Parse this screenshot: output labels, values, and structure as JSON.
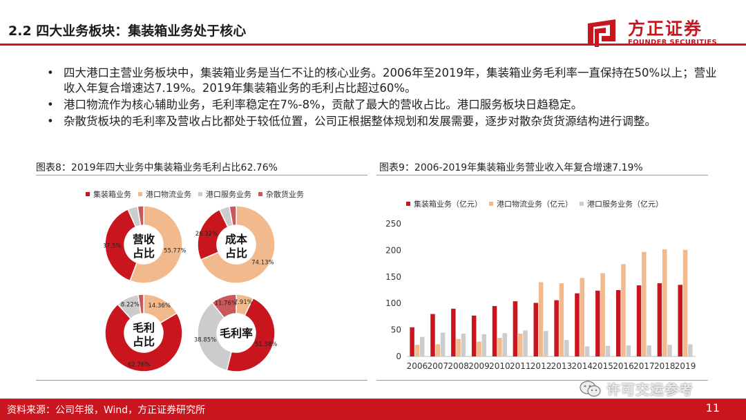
{
  "header": {
    "title": "2.2 四大业务板块：集装箱业务处于核心",
    "logo_cn": "方正证券",
    "logo_en": "FOUNDER SECURITIES"
  },
  "bullets": [
    "四大港口主营业务板块中，集装箱业务是当仁不让的核心业务。2006年至2019年，集装箱业务毛利率一直保持在50%以上；营业收入年复合增速达7.19%。2019年集装箱业务的毛利占比超过60%。",
    "港口物流作为核心辅助业务，毛利率稳定在7%-8%，贡献了最大的营收占比。港口服务板块日趋稳定。",
    "杂散货板块的毛利率及营收占比都处于较低位置，公司正根据整体规划和发展需要，逐步对散杂货货源结构进行调整。"
  ],
  "colors": {
    "red": "#c9151e",
    "orange": "#f2b98c",
    "gray": "#cccccc",
    "pink": "#c9585a",
    "footer_bg": "#c9151e"
  },
  "figure8": {
    "title": "图表8：2019年四大业务中集装箱业务毛利占比62.76%",
    "legend": [
      "集装箱业务",
      "港口物流业务",
      "港口服务业务",
      "杂散货业务"
    ]
  },
  "figure9": {
    "title": "图表9：2006-2019年集装箱业务营业收入年复合增速7.19%",
    "legend": [
      "集装箱业务（亿元）",
      "港口物流业务（亿元）",
      "港口服务业务（亿元）"
    ]
  },
  "chart_data": [
    {
      "type": "pie",
      "center_label": "营收\n占比",
      "series": [
        {
          "name": "集装箱业务",
          "value": 37.5,
          "label": "37.5%"
        },
        {
          "name": "港口物流业务",
          "value": 55.77,
          "label": "55.77%"
        },
        {
          "name": "港口服务业务",
          "value": 4.2,
          "label": ""
        },
        {
          "name": "杂散货业务",
          "value": 2.53,
          "label": ""
        }
      ]
    },
    {
      "type": "pie",
      "center_label": "成本\n占比",
      "series": [
        {
          "name": "集装箱业务",
          "value": 26.32,
          "label": "26.32%"
        },
        {
          "name": "港口物流业务",
          "value": 74.13,
          "label": "74.13%"
        },
        {
          "name": "港口服务业务",
          "value": 4.6,
          "label": ""
        },
        {
          "name": "杂散货业务",
          "value": 3.1,
          "label": ""
        }
      ]
    },
    {
      "type": "pie",
      "center_label": "毛利\n占比",
      "series": [
        {
          "name": "集装箱业务",
          "value": 62.76,
          "label": "62.76%"
        },
        {
          "name": "港口物流业务",
          "value": 14.36,
          "label": "14.36%"
        },
        {
          "name": "港口服务业务",
          "value": 8.22,
          "label": "8.22%"
        },
        {
          "name": "杂散货业务",
          "value": 2.0,
          "label": ""
        }
      ]
    },
    {
      "type": "pie",
      "center_label": "毛利率",
      "series": [
        {
          "name": "集装箱业务",
          "value": 51.38,
          "label": "51.38%"
        },
        {
          "name": "港口物流业务",
          "value": 7.91,
          "label": "7.91%"
        },
        {
          "name": "港口服务业务",
          "value": 38.85,
          "label": "38.85%"
        },
        {
          "name": "杂散货业务",
          "value": 11.76,
          "label": "11.76%"
        }
      ]
    },
    {
      "type": "bar",
      "categories": [
        "2006",
        "2007",
        "2008",
        "2009",
        "2010",
        "2011",
        "2012",
        "2013",
        "2014",
        "2015",
        "2016",
        "2017",
        "2018",
        "2019"
      ],
      "series": [
        {
          "name": "集装箱业务（亿元）",
          "values": [
            55,
            80,
            90,
            77,
            95,
            104,
            101,
            106,
            119,
            124,
            125,
            134,
            138,
            135
          ]
        },
        {
          "name": "港口物流业务（亿元）",
          "values": [
            22,
            23,
            33,
            28,
            35,
            43,
            140,
            138,
            148,
            157,
            174,
            197,
            202,
            201
          ]
        },
        {
          "name": "港口服务业务（亿元）",
          "values": [
            37,
            45,
            43,
            42,
            44,
            49,
            48,
            31,
            19,
            20,
            21,
            21,
            22,
            23
          ]
        }
      ],
      "ylim": [
        0,
        250
      ],
      "yticks": [
        0,
        50,
        100,
        150,
        200,
        250
      ]
    }
  ],
  "footer": {
    "source": "资料来源：公司年报，Wind，方正证券研究所",
    "page": "11",
    "watermark": "许可交运参考"
  }
}
